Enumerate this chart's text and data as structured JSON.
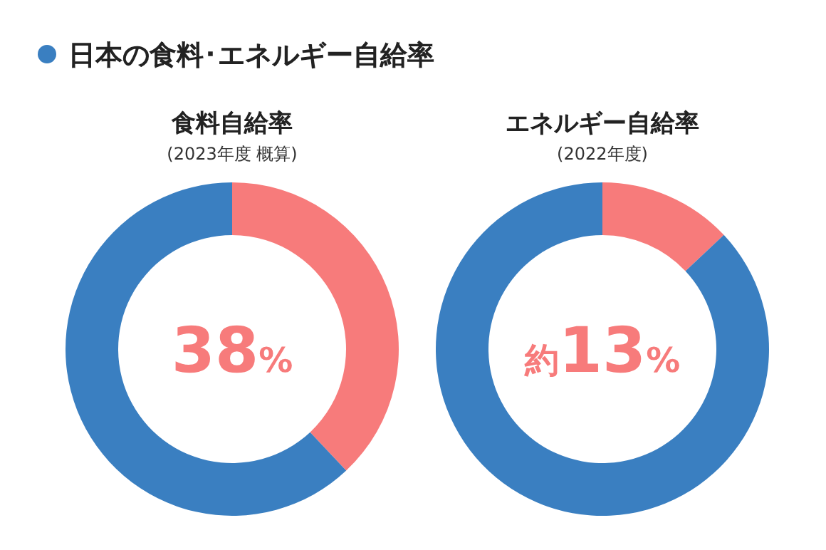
{
  "chart_data": [
    {
      "type": "other",
      "title": "日本の食料･エネルギー自給率"
    },
    {
      "type": "donut",
      "title": "食料自給率",
      "subtitle": "(2023年度 概算)",
      "categories": [
        null,
        null
      ],
      "values": [
        38,
        62
      ],
      "colors": [
        "#f77b7b",
        "#3a7fc1"
      ],
      "annotations": [
        "38%"
      ]
    },
    {
      "type": "donut",
      "title": "エネルギー自給率",
      "subtitle": "(2022年度)",
      "categories": [
        null,
        null
      ],
      "values": [
        13,
        87
      ],
      "colors": [
        "#f77b7b",
        "#3a7fc1"
      ],
      "annotations": [
        "約13%"
      ]
    }
  ]
}
